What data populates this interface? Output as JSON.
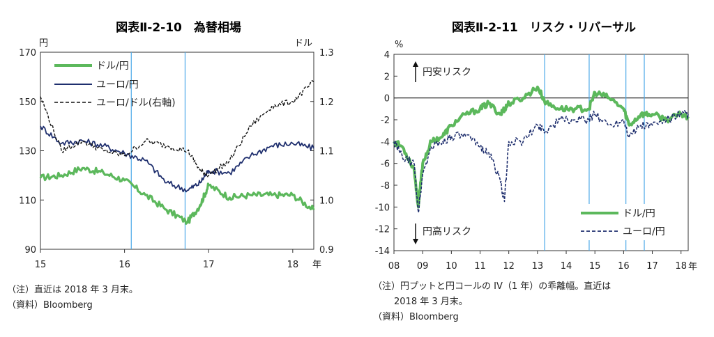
{
  "chart_data": [
    {
      "type": "line",
      "title": "図表Ⅱ-2-10　為替相場",
      "left_unit": "円",
      "right_unit": "ドル",
      "xlabel": "年",
      "x_ticks": [
        "15",
        "16",
        "17",
        "18"
      ],
      "y_left_ticks": [
        "170",
        "150",
        "130",
        "110",
        "90"
      ],
      "y_right_ticks": [
        "1.3",
        "1.2",
        "1.1",
        "1.0",
        "0.9"
      ],
      "ylim_left": [
        90,
        170
      ],
      "ylim_right": [
        0.9,
        1.3
      ],
      "xlim": [
        15.0,
        18.25
      ],
      "vlines": [
        16.08,
        16.72
      ],
      "x": [
        15.0,
        15.25,
        15.5,
        15.75,
        16.0,
        16.25,
        16.5,
        16.75,
        16.9,
        17.0,
        17.25,
        17.5,
        17.75,
        18.0,
        18.25
      ],
      "series": [
        {
          "name": "ドル/円",
          "axis": "left",
          "color": "#5cb85c",
          "dash": "solid",
          "values": [
            119,
            120,
            123,
            121,
            118,
            112,
            106,
            101,
            108,
            116,
            111,
            112,
            112,
            112,
            106
          ]
        },
        {
          "name": "ユーロ/円",
          "axis": "left",
          "color": "#1f2f6e",
          "dash": "solid",
          "values": [
            140,
            133,
            134,
            132,
            129,
            126,
            117,
            114,
            117,
            122,
            121,
            128,
            132,
            133,
            131
          ]
        },
        {
          "name": "ユーロ/ドル(右軸)",
          "axis": "right",
          "color": "#111111",
          "dash": "dashed",
          "values": [
            1.21,
            1.1,
            1.12,
            1.1,
            1.09,
            1.12,
            1.11,
            1.1,
            1.06,
            1.05,
            1.08,
            1.15,
            1.19,
            1.2,
            1.24
          ]
        }
      ],
      "notes": [
        "（注）直近は 2018 年 3 月末。",
        "（資料）Bloomberg"
      ]
    },
    {
      "type": "line",
      "title": "図表Ⅱ-2-11　リスク・リバーサル",
      "y_unit": "%",
      "xlabel": "年",
      "x_ticks": [
        "08",
        "09",
        "10",
        "11",
        "12",
        "13",
        "14",
        "15",
        "16",
        "17",
        "18"
      ],
      "y_ticks": [
        "4",
        "2",
        "0",
        "-2",
        "-4",
        "-6",
        "-8",
        "-10",
        "-12",
        "-14"
      ],
      "ylim": [
        -14,
        4
      ],
      "xlim": [
        8.0,
        18.25
      ],
      "vlines": [
        13.25,
        14.8,
        16.08,
        16.72
      ],
      "annotation_up": "円安リスク",
      "annotation_down": "円高リスク",
      "x": [
        8.0,
        8.3,
        8.7,
        8.85,
        9.0,
        9.3,
        9.7,
        10.0,
        10.5,
        11.0,
        11.3,
        11.7,
        11.85,
        12.0,
        12.5,
        13.0,
        13.3,
        13.8,
        14.3,
        14.8,
        15.0,
        15.5,
        16.0,
        16.2,
        16.6,
        17.0,
        17.5,
        18.0,
        18.25
      ],
      "series": [
        {
          "name": "ドル/円",
          "color": "#5cb85c",
          "dash": "solid",
          "values": [
            -4.0,
            -4.5,
            -6.5,
            -10.0,
            -6.0,
            -4.0,
            -3.5,
            -2.5,
            -1.5,
            -1.0,
            -0.5,
            -1.5,
            -1.0,
            -0.5,
            0.0,
            1.0,
            -0.5,
            -1.0,
            -1.0,
            -1.0,
            0.5,
            0.0,
            -1.0,
            -2.5,
            -1.5,
            -1.5,
            -2.0,
            -1.5,
            -1.7
          ]
        },
        {
          "name": "ユーロ/円",
          "color": "#1f2f6e",
          "dash": "dashed",
          "values": [
            -4.0,
            -5.5,
            -6.0,
            -10.5,
            -7.0,
            -4.5,
            -4.0,
            -3.5,
            -3.5,
            -4.5,
            -5.0,
            -7.5,
            -9.5,
            -4.0,
            -4.0,
            -2.5,
            -3.0,
            -2.0,
            -2.0,
            -2.0,
            -1.5,
            -2.5,
            -2.0,
            -3.5,
            -2.5,
            -2.5,
            -2.0,
            -1.5,
            -1.5
          ]
        }
      ],
      "notes": [
        "（注）円プットと円コールの IV（1 年）の乖離幅。直近は",
        "2018 年 3 月末。",
        "（資料）Bloomberg"
      ]
    }
  ]
}
